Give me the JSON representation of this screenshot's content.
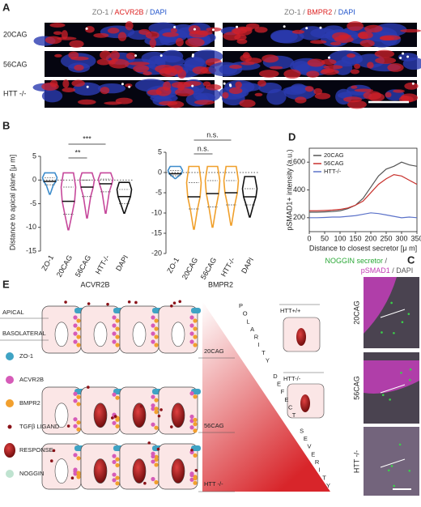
{
  "panel_a": {
    "label": "A",
    "header_left": [
      "ZO-1",
      "/",
      "ACVR2B",
      "/",
      "DAPI"
    ],
    "header_right": [
      "ZO-1",
      "/",
      "BMPR2",
      "/",
      "DAPI"
    ],
    "rows": [
      "20CAG",
      "56CAG",
      "HTT -/-"
    ]
  },
  "panel_b": {
    "label": "B",
    "ylabel": "Distance to apical plane [μ m]"
  },
  "panel_c": {
    "label": "C",
    "header": [
      "NOGGIN secretor",
      "/",
      "pSMAD1",
      "/ DAPI"
    ],
    "rows": [
      "20CAG",
      "56CAG",
      "HTT -/-"
    ]
  },
  "panel_d": {
    "label": "D"
  },
  "panel_e": {
    "label": "E",
    "apical": "APICAL",
    "basolateral": "BASOLATERAL",
    "legend": [
      "ZO-1",
      "ACVR2B",
      "BMPR2",
      "TGFβ LIGAND",
      "RESPONSE",
      "NOGGIN"
    ],
    "rows": [
      "20CAG",
      "56CAG",
      "HTT -/-"
    ],
    "diagonal": [
      "POLARITY",
      "DEFECT",
      "SEVERITY"
    ],
    "insets": [
      "HTT+/+",
      "HTT-/-"
    ]
  },
  "chart_data": [
    {
      "type": "violin",
      "group": "ACVR2B",
      "categories": [
        "ZO-1",
        "20CAG",
        "56CAG",
        "HTT-/-",
        "DAPI"
      ],
      "colors": [
        "#3d8ccb",
        "#c6489b",
        "#c6489b",
        "#c6489b",
        "#111111"
      ],
      "min": [
        -3,
        -10.5,
        -8,
        -7,
        -7
      ],
      "q1": [
        -1,
        -7.2,
        -3.5,
        -2.5,
        -5
      ],
      "median": [
        -0.3,
        -4.5,
        -1.5,
        -0.8,
        -3.5
      ],
      "q3": [
        0.5,
        -1.5,
        0,
        0.2,
        -2
      ],
      "max": [
        1.5,
        1.5,
        1.5,
        1.5,
        -0.5
      ],
      "ylim": [
        -15,
        5
      ],
      "yticks": [
        5,
        0,
        -5,
        -10,
        -15
      ],
      "significance": [
        "***",
        "**"
      ]
    },
    {
      "type": "violin",
      "group": "BMPR2",
      "categories": [
        "ZO-1",
        "20CAG",
        "56CAG",
        "HTT-/-",
        "DAPI"
      ],
      "colors": [
        "#3d8ccb",
        "#f0a02c",
        "#f0a02c",
        "#f0a02c",
        "#111111"
      ],
      "min": [
        -1.5,
        -14,
        -13.5,
        -13,
        -11
      ],
      "q1": [
        -0.8,
        -9,
        -8.5,
        -8,
        -8
      ],
      "median": [
        -0.3,
        -6,
        -5.2,
        -5,
        -6
      ],
      "q3": [
        0.5,
        -2.5,
        -2,
        -2,
        -4
      ],
      "max": [
        1.5,
        1.5,
        1.5,
        1.5,
        -1
      ],
      "ylim": [
        -20,
        5
      ],
      "yticks": [
        5,
        0,
        -5,
        -10,
        -15,
        -20
      ],
      "significance": [
        "n.s.",
        "n.s."
      ]
    },
    {
      "type": "line",
      "xlabel": "Distance to closest secretor [μ m]",
      "ylabel": "pSMAD1+ intensity (a.u.)",
      "x": [
        0,
        25,
        50,
        75,
        100,
        125,
        150,
        175,
        200,
        225,
        250,
        275,
        300,
        325,
        350
      ],
      "series": [
        {
          "name": "20CAG",
          "color": "#555555",
          "values": [
            240,
            240,
            242,
            245,
            250,
            265,
            290,
            340,
            420,
            500,
            550,
            570,
            600,
            580,
            570
          ]
        },
        {
          "name": "56CAG",
          "color": "#c8312c",
          "values": [
            250,
            250,
            252,
            255,
            260,
            270,
            290,
            320,
            380,
            440,
            480,
            510,
            500,
            470,
            440
          ]
        },
        {
          "name": "HTT-/-",
          "color": "#5b72c9",
          "values": [
            200,
            200,
            202,
            205,
            205,
            210,
            215,
            225,
            235,
            230,
            220,
            210,
            200,
            205,
            200
          ]
        }
      ],
      "xlim": [
        0,
        350
      ],
      "xticks": [
        0,
        50,
        100,
        150,
        200,
        250,
        300,
        350
      ],
      "ylim": [
        100,
        700
      ],
      "yticks": [
        200,
        400,
        600
      ],
      "legend": "upper left"
    }
  ]
}
